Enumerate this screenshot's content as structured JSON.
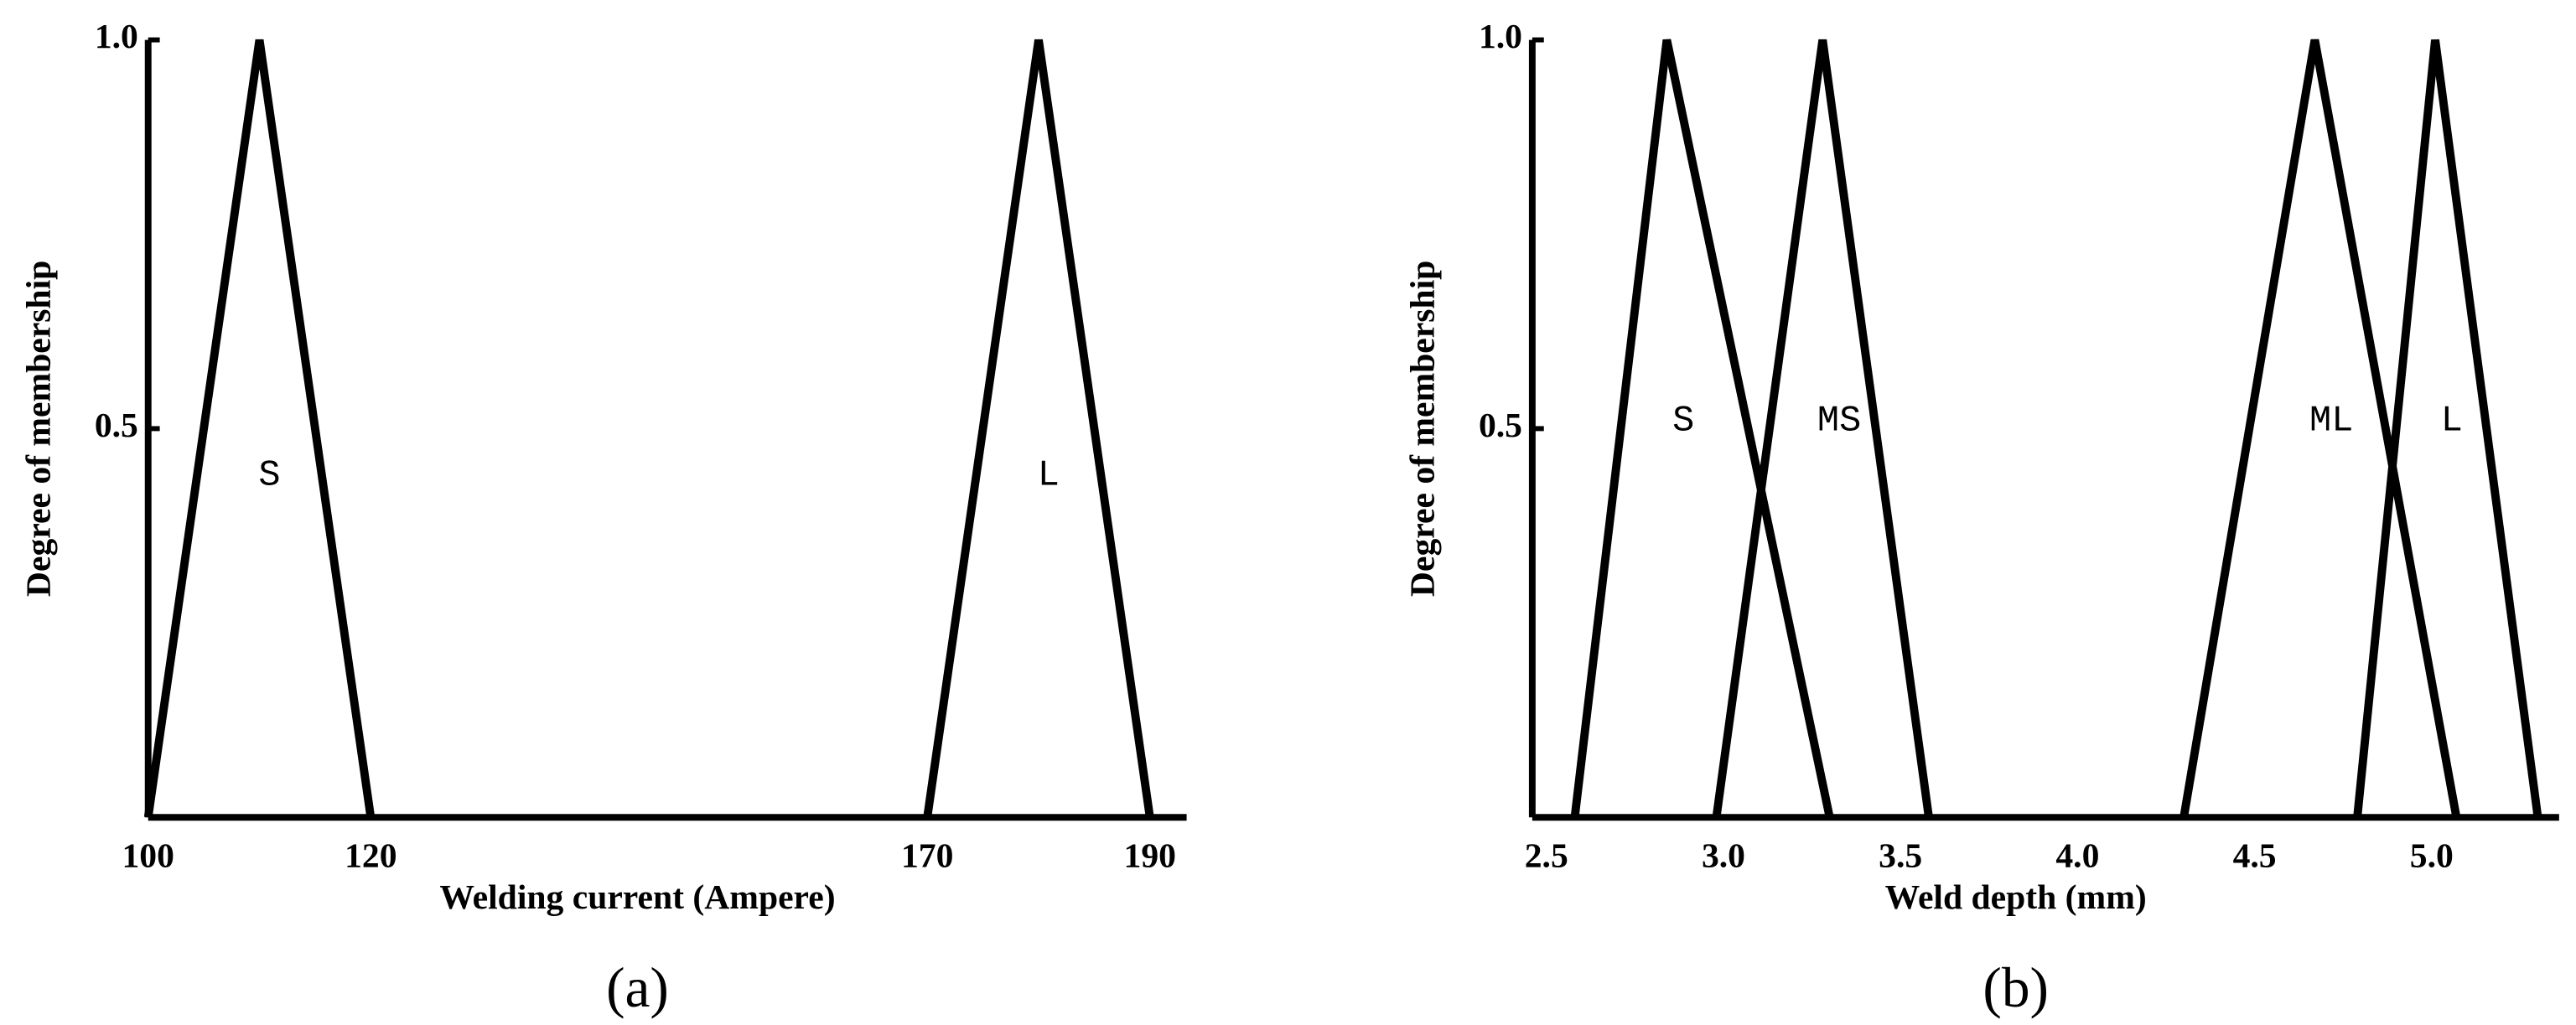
{
  "chart_data": [
    {
      "type": "line",
      "caption": "(a)",
      "x_label": "Welding current (Ampere)",
      "y_label": "Degree of membership",
      "xlim": [
        100,
        193.3
      ],
      "ylim": [
        0,
        1
      ],
      "xticks": [
        100,
        120,
        170,
        190
      ],
      "yticks": [
        0.5,
        {
          "value": 1,
          "label": "1.0"
        }
      ],
      "series": [
        {
          "name": "S",
          "color": "#000000",
          "x": [
            100,
            110,
            120
          ],
          "values": [
            0,
            1,
            0
          ]
        },
        {
          "name": "L",
          "color": "#000000",
          "x": [
            170,
            180,
            190
          ],
          "values": [
            0,
            1,
            0
          ]
        }
      ]
    },
    {
      "type": "line",
      "caption": "(b)",
      "x_label": "Weld depth (mm)",
      "y_label": "Degree of membership",
      "xlim": [
        2.46,
        5.36
      ],
      "ylim": [
        0,
        1
      ],
      "xticks": [
        2.5,
        {
          "value": 3,
          "label": "3.0"
        },
        3.5,
        {
          "value": 4,
          "label": "4.0"
        },
        4.5,
        {
          "value": 5,
          "label": "5.0"
        }
      ],
      "yticks": [
        0.5,
        {
          "value": 1,
          "label": "1.0"
        }
      ],
      "series": [
        {
          "name": "S",
          "color": "#000000",
          "x": [
            2.58,
            2.84,
            3.3
          ],
          "values": [
            0,
            1,
            0
          ]
        },
        {
          "name": "MS",
          "color": "#000000",
          "x": [
            2.98,
            3.28,
            3.58
          ],
          "values": [
            0,
            1,
            0
          ]
        },
        {
          "name": "ML",
          "color": "#000000",
          "x": [
            4.3,
            4.67,
            5.07
          ],
          "values": [
            0,
            1,
            0
          ]
        },
        {
          "name": "L",
          "color": "#000000",
          "x": [
            4.79,
            5.01,
            5.3
          ],
          "values": [
            0,
            1,
            0
          ]
        }
      ]
    }
  ]
}
